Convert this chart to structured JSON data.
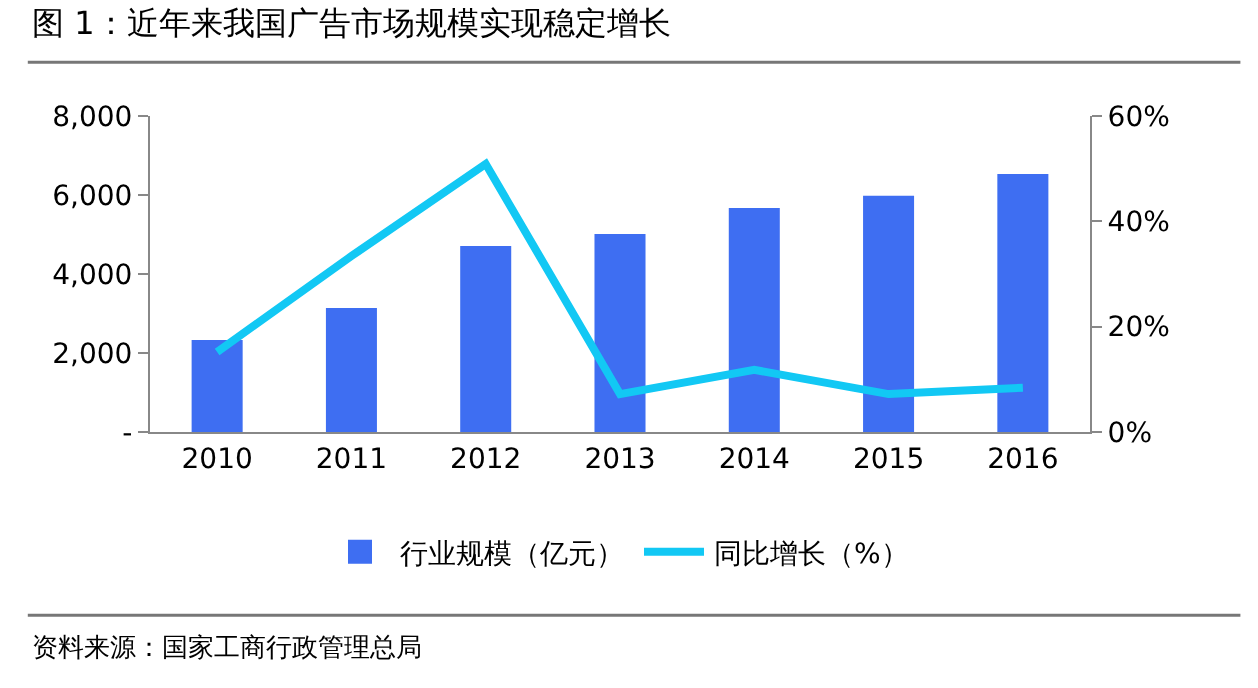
{
  "chart_data": {
    "type": "bar",
    "title": "图 1：近年来我国广告市场规模实现稳定增长",
    "categories": [
      "2010",
      "2011",
      "2012",
      "2013",
      "2014",
      "2015",
      "2016"
    ],
    "series": [
      {
        "name": "行业规模（亿元）",
        "color": "#3e6ef2",
        "values": [
          2330,
          3140,
          4710,
          5010,
          5670,
          5980,
          6530
        ]
      },
      {
        "name": "同比增长（%）",
        "type": "line",
        "axis": "y2",
        "color": "#12c8f4",
        "values": [
          15.2,
          33.4,
          50.9,
          7.2,
          11.8,
          7.2,
          8.4
        ]
      }
    ],
    "ylim": [
      0,
      8000
    ],
    "yticks": [
      {
        "value": 0,
        "label": "-"
      },
      {
        "value": 2000,
        "label": "2,000"
      },
      {
        "value": 4000,
        "label": "4,000"
      },
      {
        "value": 6000,
        "label": "6,000"
      },
      {
        "value": 8000,
        "label": "8,000"
      }
    ],
    "y2lim": [
      0,
      60
    ],
    "y2ticks": [
      {
        "value": 0,
        "label": "0%"
      },
      {
        "value": 20,
        "label": "20%"
      },
      {
        "value": 40,
        "label": "40%"
      },
      {
        "value": 60,
        "label": "60%"
      }
    ],
    "grid": false,
    "legend": "bottom",
    "marker": "none",
    "line_style": "solid",
    "annotations": [
      "资料来源：国家工商行政管理总局"
    ]
  }
}
